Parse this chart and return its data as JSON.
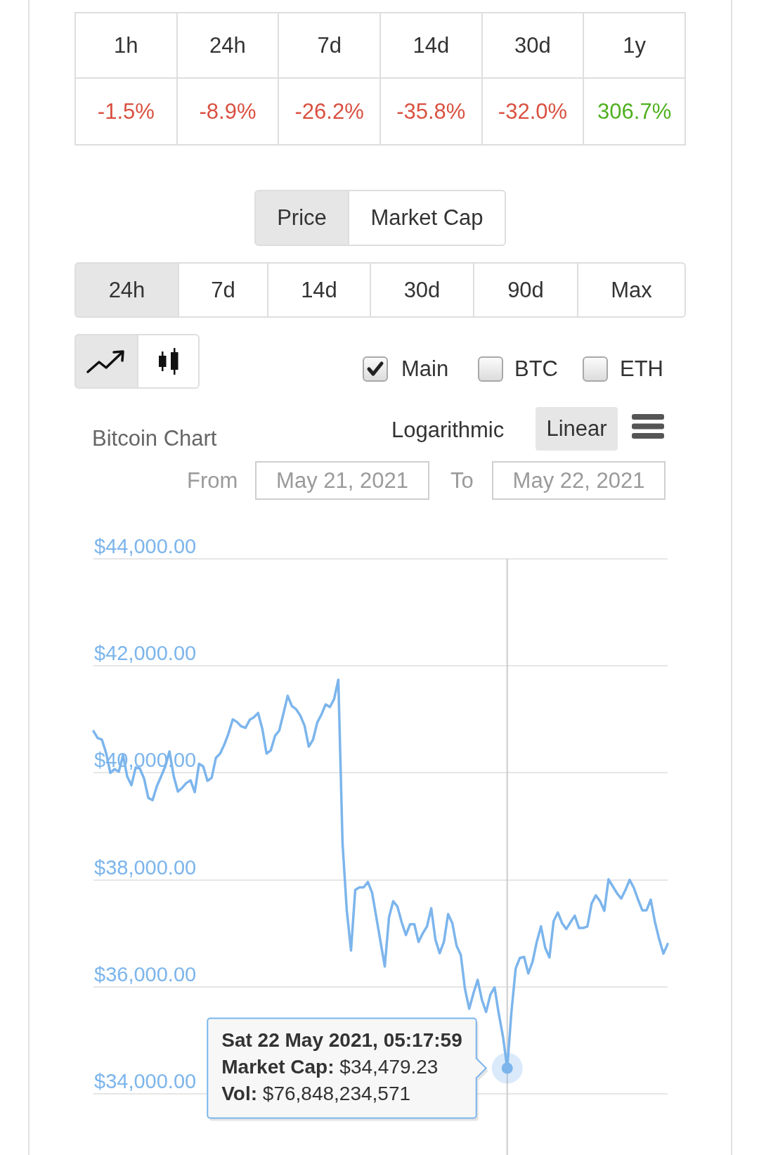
{
  "chart_data": [
    {
      "type": "other",
      "categories": [
        "1h",
        "24h",
        "7d",
        "14d",
        "30d",
        "1y"
      ],
      "values": [
        -1.5,
        -8.9,
        -26.2,
        -35.8,
        -32.0,
        306.7
      ],
      "value_labels": [
        "-1.5%",
        "-8.9%",
        "-26.2%",
        "-35.8%",
        "-32.0%",
        "306.7%"
      ],
      "colors": [
        "#d95040",
        "#d95040",
        "#d95040",
        "#d95040",
        "#d95040",
        "#50b020"
      ]
    },
    {
      "type": "line",
      "title": "Bitcoin Chart",
      "categories": [
        null,
        null,
        null,
        null,
        null,
        null,
        null,
        null,
        null,
        null,
        null,
        null,
        null,
        null,
        null,
        null,
        null,
        null,
        null,
        null,
        null,
        null,
        null,
        null,
        null,
        null,
        null,
        null,
        null,
        null,
        null,
        null,
        null,
        null,
        null,
        null,
        null,
        null,
        null,
        null,
        null,
        null,
        null,
        null,
        null,
        null,
        null,
        null,
        null,
        null,
        null,
        null,
        null,
        null,
        null,
        null,
        null,
        null,
        null,
        null,
        null,
        null,
        null,
        null,
        null,
        null,
        null,
        null,
        null,
        null,
        null,
        null,
        null,
        null,
        null,
        null,
        null,
        null,
        null,
        null,
        null,
        null,
        null,
        null,
        null,
        null,
        null,
        null,
        null,
        null,
        null,
        null,
        null,
        null,
        null,
        null,
        null,
        null,
        null,
        null,
        null,
        null,
        null,
        null,
        null,
        null,
        null,
        null,
        null,
        null,
        null,
        null,
        null,
        null,
        null,
        null,
        null,
        null,
        null,
        null,
        null,
        null,
        null,
        null,
        null,
        null,
        null,
        null,
        null,
        null,
        null,
        null,
        null,
        null,
        null,
        null,
        null
      ],
      "series": [
        {
          "color": "#7cb5ec",
          "values": [
            40780,
            40650,
            40620,
            40370,
            40000,
            40070,
            40020,
            40330,
            39930,
            39770,
            40100,
            40080,
            39890,
            39530,
            39490,
            39750,
            39930,
            40120,
            40400,
            39940,
            39650,
            39720,
            39810,
            39860,
            39640,
            40170,
            40120,
            39850,
            39910,
            40280,
            40360,
            40530,
            40740,
            41000,
            40950,
            40870,
            40840,
            40990,
            41040,
            41120,
            40820,
            40360,
            40420,
            40690,
            40790,
            41110,
            41440,
            41250,
            41190,
            41070,
            40880,
            40490,
            40620,
            40940,
            41090,
            41280,
            41230,
            41380,
            41740,
            38680,
            37430,
            36680,
            37810,
            37860,
            37860,
            37960,
            37760,
            37300,
            36840,
            36380,
            37300,
            37600,
            37500,
            37210,
            36970,
            37170,
            37170,
            36840,
            37000,
            37130,
            37470,
            36880,
            36630,
            36840,
            37360,
            37190,
            36770,
            36600,
            35960,
            35590,
            35880,
            36130,
            35760,
            35530,
            35850,
            35990,
            35500,
            35070,
            34479.23,
            35530,
            36340,
            36540,
            36560,
            36250,
            36470,
            36840,
            37130,
            36730,
            36550,
            37230,
            37390,
            37190,
            37080,
            37210,
            37330,
            37100,
            37100,
            37130,
            37560,
            37710,
            37600,
            37420,
            38010,
            37880,
            37750,
            37650,
            37810,
            38000,
            37850,
            37630,
            37430,
            37430,
            37630,
            37210,
            36890,
            36620,
            36800
          ]
        },
        {
          "type": "scatter",
          "color": "#7cb5ec",
          "values": [
            null,
            null,
            null,
            null,
            null,
            null,
            null,
            null,
            null,
            null,
            null,
            null,
            null,
            null,
            null,
            null,
            null,
            null,
            null,
            null,
            null,
            null,
            null,
            null,
            null,
            null,
            null,
            null,
            null,
            null,
            null,
            null,
            null,
            null,
            null,
            null,
            null,
            null,
            null,
            null,
            null,
            null,
            null,
            null,
            null,
            null,
            null,
            null,
            null,
            null,
            null,
            null,
            null,
            null,
            null,
            null,
            null,
            null,
            null,
            null,
            null,
            null,
            null,
            null,
            null,
            null,
            null,
            null,
            null,
            null,
            null,
            null,
            null,
            null,
            null,
            null,
            null,
            null,
            null,
            null,
            null,
            null,
            null,
            null,
            null,
            null,
            null,
            null,
            null,
            null,
            null,
            null,
            null,
            null,
            null,
            null,
            null,
            null,
            34479.23,
            null,
            null,
            null,
            null,
            null,
            null,
            null,
            null,
            null,
            null,
            null,
            null,
            null,
            null,
            null,
            null,
            null,
            null,
            null,
            null,
            null,
            null,
            null,
            null,
            null,
            null,
            null,
            null,
            null,
            null,
            null,
            null,
            null,
            null,
            null,
            null,
            null,
            null
          ]
        }
      ],
      "ylim": [
        34000,
        44000
      ],
      "yticks": [
        {
          "value": 34000,
          "label": "$34,000.00"
        },
        {
          "value": 36000,
          "label": "$36,000.00"
        },
        {
          "value": 38000,
          "label": "$38,000.00"
        },
        {
          "value": 40000,
          "label": "$40,000.00"
        },
        {
          "value": 42000,
          "label": "$42,000.00"
        },
        {
          "value": 44000,
          "label": "$44,000.00"
        }
      ],
      "grid": "y",
      "tick_labels": "y",
      "annotations": [
        "Price",
        "Market Cap",
        "24h",
        "7d",
        "14d",
        "30d",
        "90d",
        "Max",
        "Main",
        "BTC",
        "ETH",
        "Logarithmic",
        "Linear",
        "From",
        "May 21, 2021",
        "To",
        "May 22, 2021",
        "Sat 22 May 2021, 05:17:59 Market Cap: $34,479.23 Vol: $76,848,234,571"
      ]
    }
  ]
}
